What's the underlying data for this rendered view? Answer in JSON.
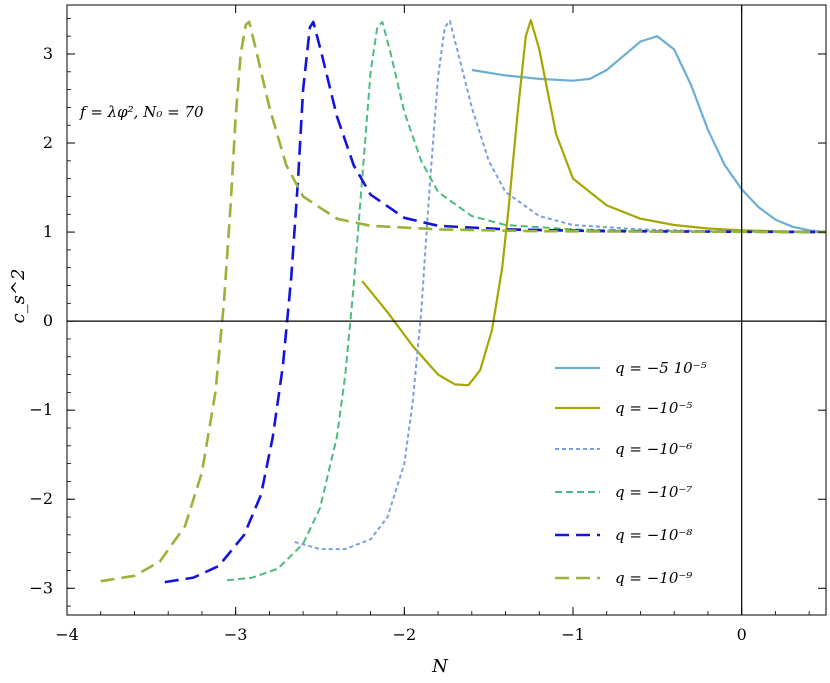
{
  "chart_data": {
    "type": "line",
    "xlabel": "N",
    "ylabel": "c_s^2",
    "xlim": [
      -4,
      0.5
    ],
    "ylim": [
      -3.3,
      3.55
    ],
    "x_ticks": [
      -4,
      -3,
      -2,
      -1,
      0
    ],
    "x_tick_labels": [
      "−4",
      "−3",
      "−2",
      "−1",
      "0"
    ],
    "y_ticks": [
      -3,
      -2,
      -1,
      0,
      1,
      2,
      3
    ],
    "y_tick_labels": [
      "−3",
      "−2",
      "−1",
      "0",
      "1",
      "2",
      "3"
    ],
    "grid": false,
    "legend_position": "bottom-right",
    "annotation": "f = λφ², N₀ = 70",
    "series": [
      {
        "name": "q = −5 10⁻⁵",
        "color": "#6aaed6",
        "dash": "solid",
        "x": [
          -1.6,
          -1.4,
          -1.2,
          -1.0,
          -0.9,
          -0.8,
          -0.7,
          -0.6,
          -0.5,
          -0.4,
          -0.3,
          -0.2,
          -0.1,
          0.0,
          0.1,
          0.2,
          0.3,
          0.4,
          0.5
        ],
        "y": [
          2.82,
          2.76,
          2.72,
          2.7,
          2.72,
          2.82,
          2.98,
          3.14,
          3.2,
          3.05,
          2.65,
          2.15,
          1.75,
          1.48,
          1.28,
          1.14,
          1.06,
          1.02,
          1.0
        ]
      },
      {
        "name": "q = −10⁻⁵",
        "color": "#a6a600",
        "dash": "solid",
        "x": [
          -2.25,
          -2.1,
          -1.95,
          -1.8,
          -1.7,
          -1.62,
          -1.55,
          -1.48,
          -1.42,
          -1.38,
          -1.33,
          -1.28,
          -1.25,
          -1.2,
          -1.1,
          -1.0,
          -0.8,
          -0.6,
          -0.4,
          -0.2,
          0.0,
          0.2,
          0.5
        ],
        "y": [
          0.45,
          0.1,
          -0.28,
          -0.6,
          -0.71,
          -0.72,
          -0.55,
          -0.1,
          0.6,
          1.3,
          2.3,
          3.2,
          3.38,
          3.05,
          2.1,
          1.6,
          1.3,
          1.15,
          1.08,
          1.04,
          1.02,
          1.01,
          1.0
        ]
      },
      {
        "name": "q = −10⁻⁶",
        "color": "#7b9fe0",
        "dash": "short",
        "x": [
          -2.65,
          -2.5,
          -2.35,
          -2.2,
          -2.1,
          -2.0,
          -1.95,
          -1.9,
          -1.85,
          -1.8,
          -1.76,
          -1.73,
          -1.68,
          -1.6,
          -1.5,
          -1.4,
          -1.2,
          -1.0,
          -0.6,
          -0.2,
          0.5
        ],
        "y": [
          -2.48,
          -2.56,
          -2.56,
          -2.45,
          -2.2,
          -1.6,
          -0.9,
          0.1,
          1.5,
          2.75,
          3.3,
          3.37,
          3.0,
          2.4,
          1.8,
          1.45,
          1.18,
          1.08,
          1.03,
          1.01,
          1.0
        ]
      },
      {
        "name": "q = −10⁻⁷",
        "color": "#4dbb7f",
        "dash": "medium",
        "x": [
          -3.05,
          -2.9,
          -2.75,
          -2.6,
          -2.5,
          -2.4,
          -2.35,
          -2.3,
          -2.25,
          -2.2,
          -2.16,
          -2.13,
          -2.08,
          -2.0,
          -1.9,
          -1.8,
          -1.6,
          -1.4,
          -1.0,
          -0.4,
          0.5
        ],
        "y": [
          -2.91,
          -2.88,
          -2.78,
          -2.5,
          -2.1,
          -1.3,
          -0.6,
          0.4,
          1.6,
          2.8,
          3.3,
          3.36,
          3.0,
          2.35,
          1.8,
          1.45,
          1.18,
          1.08,
          1.03,
          1.01,
          1.0
        ]
      },
      {
        "name": "q = −10⁻⁸",
        "color": "#1414dc",
        "dash": "long",
        "x": [
          -3.42,
          -3.25,
          -3.1,
          -2.95,
          -2.85,
          -2.78,
          -2.72,
          -2.67,
          -2.63,
          -2.6,
          -2.56,
          -2.54,
          -2.49,
          -2.4,
          -2.3,
          -2.2,
          -2.0,
          -1.8,
          -1.4,
          -0.8,
          0.5
        ],
        "y": [
          -2.93,
          -2.88,
          -2.75,
          -2.4,
          -1.95,
          -1.3,
          -0.5,
          0.5,
          1.6,
          2.6,
          3.3,
          3.36,
          3.0,
          2.3,
          1.75,
          1.42,
          1.16,
          1.07,
          1.03,
          1.01,
          1.0
        ]
      },
      {
        "name": "q = −10⁻⁹",
        "color": "#99b33a",
        "dash": "long",
        "x": [
          -3.8,
          -3.6,
          -3.45,
          -3.3,
          -3.2,
          -3.12,
          -3.07,
          -3.03,
          -3.0,
          -2.97,
          -2.94,
          -2.92,
          -2.88,
          -2.8,
          -2.7,
          -2.6,
          -2.4,
          -2.2,
          -1.8,
          -1.2,
          0.5
        ],
        "y": [
          -2.92,
          -2.86,
          -2.7,
          -2.3,
          -1.7,
          -0.8,
          0.2,
          1.3,
          2.3,
          3.0,
          3.33,
          3.36,
          3.05,
          2.4,
          1.75,
          1.4,
          1.15,
          1.07,
          1.03,
          1.01,
          1.0
        ]
      }
    ]
  }
}
